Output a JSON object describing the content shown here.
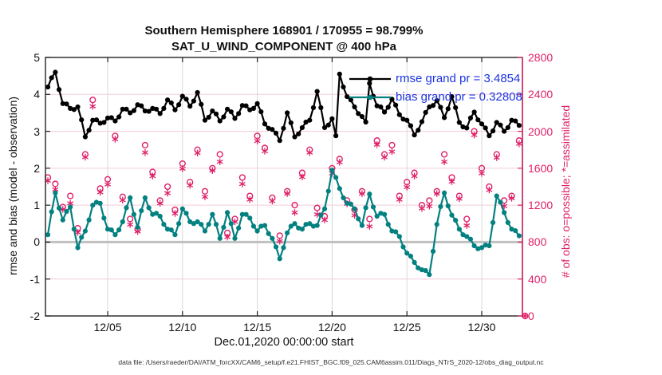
{
  "title": {
    "line1": "Southern Hemisphere 168901 / 170955 = 98.799%",
    "line2": "SAT_U_WIND_COMPONENT @ 400 hPa"
  },
  "legend": {
    "text_color": "#1b34e2",
    "items": [
      {
        "label": "rmse grand pr = 3.4854",
        "series": "rmse"
      },
      {
        "label": "bias grand pr = 0.32808",
        "series": "bias"
      }
    ]
  },
  "axes": {
    "ylabel_left": "rmse and bias (model - observation)",
    "ylabel_right": "# of obs: o=possible; *=assimilated",
    "xlabel": "Dec.01,2020 00:00:00 start"
  },
  "footer": {
    "text": "data file: /Users/raeder/DAI/ATM_forcXX/CAM6_setup/f.e21.FHIST_BGC.f09_025.CAM6assim.011/Diags_NTrS_2020-12/obs_diag_output.nc"
  },
  "colors": {
    "rmse": "#000000",
    "bias": "#038080",
    "obs": "#de2168",
    "grid_h": "#f5ccdb",
    "grid_v": "#d9d9d9",
    "zero_line": "#c0c0c0",
    "spine": "#222222"
  },
  "chart_data": {
    "type": "line",
    "title": "Southern Hemisphere 168901 / 170955 = 98.799% — SAT_U_WIND_COMPONENT @ 400 hPa",
    "xlabel": "Dec.01,2020 00:00:00 start",
    "ylabel_left": "rmse and bias (model - observation)",
    "ylabel_right": "# of obs: o=possible; *=assimilated",
    "xlim": [
      -0.16,
      31.72
    ],
    "ylim_left": [
      -2,
      5
    ],
    "ylim_right": [
      0,
      2800
    ],
    "grid": true,
    "legend_position": "top-right",
    "xticks": [
      {
        "t": 4,
        "label": "12/05"
      },
      {
        "t": 9,
        "label": "12/10"
      },
      {
        "t": 14,
        "label": "12/15"
      },
      {
        "t": 19,
        "label": "12/20"
      },
      {
        "t": 24,
        "label": "12/25"
      },
      {
        "t": 29,
        "label": "12/30"
      }
    ],
    "yticks_left": [
      -2,
      -1,
      0,
      1,
      2,
      3,
      4,
      5
    ],
    "yticks_right": [
      0,
      400,
      800,
      1200,
      1600,
      2000,
      2400,
      2800
    ],
    "series": [
      {
        "name": "rmse",
        "grand_value": 3.4854,
        "axis": "left",
        "t_start": 0,
        "t_step": 0.25,
        "values": [
          4.2,
          4.45,
          4.6,
          4.13,
          3.75,
          3.74,
          3.62,
          3.59,
          3.66,
          3.31,
          2.85,
          3.03,
          3.3,
          3.31,
          3.22,
          3.24,
          3.36,
          3.37,
          3.28,
          3.39,
          3.6,
          3.6,
          3.5,
          3.56,
          3.72,
          3.69,
          3.55,
          3.54,
          3.62,
          3.6,
          3.48,
          3.62,
          3.85,
          3.77,
          3.58,
          3.72,
          3.95,
          3.87,
          3.68,
          3.82,
          4.05,
          3.73,
          3.3,
          3.38,
          3.55,
          3.47,
          3.28,
          3.39,
          3.6,
          3.53,
          3.35,
          3.48,
          3.7,
          3.69,
          3.58,
          3.62,
          3.75,
          3.53,
          3.2,
          3.08,
          3.05,
          2.95,
          2.75,
          3.08,
          3.5,
          3.23,
          2.85,
          2.93,
          3.1,
          3.25,
          3.3,
          3.64,
          4.08,
          3.64,
          3.1,
          3.17,
          3.34,
          2.88,
          4.55,
          4.2,
          3.94,
          3.85,
          3.66,
          3.48,
          3.4,
          3.25,
          4.3,
          3.95,
          3.69,
          3.66,
          3.52,
          3.65,
          3.87,
          3.71,
          3.45,
          3.33,
          3.3,
          3.15,
          2.9,
          3.03,
          3.26,
          3.51,
          3.66,
          3.7,
          3.83,
          3.65,
          3.37,
          3.61,
          3.94,
          3.64,
          3.24,
          3.12,
          3.09,
          3.36,
          3.52,
          3.31,
          3.2,
          3.09,
          2.88,
          3.01,
          3.24,
          3.17,
          3.0,
          3.1,
          3.3,
          3.28,
          3.16
        ]
      },
      {
        "name": "bias",
        "grand_value": 0.32808,
        "axis": "left",
        "t_start": 0,
        "t_step": 0.25,
        "values": [
          0.2,
          0.82,
          1.33,
          0.92,
          0.6,
          0.83,
          0.95,
          0.35,
          -0.15,
          0.13,
          0.3,
          0.6,
          1.0,
          1.08,
          1.05,
          0.65,
          0.35,
          0.33,
          0.2,
          0.33,
          0.55,
          0.93,
          1.2,
          0.75,
          0.4,
          0.85,
          1.2,
          0.93,
          0.75,
          0.78,
          0.7,
          0.48,
          0.35,
          0.33,
          0.2,
          0.5,
          0.9,
          0.78,
          0.55,
          0.5,
          0.55,
          0.48,
          0.3,
          0.48,
          0.75,
          0.48,
          0.1,
          0.4,
          0.8,
          0.5,
          0.1,
          0.38,
          0.75,
          0.75,
          0.65,
          0.43,
          0.3,
          0.43,
          0.45,
          0.23,
          0.1,
          -0.13,
          -0.45,
          -0.15,
          0.25,
          0.43,
          0.5,
          0.38,
          0.35,
          0.48,
          0.5,
          0.43,
          0.45,
          0.73,
          0.9,
          1.38,
          1.95,
          1.75,
          1.45,
          1.2,
          1.05,
          1.03,
          0.9,
          0.63,
          0.45,
          0.93,
          1.3,
          0.95,
          0.7,
          0.78,
          0.75,
          0.48,
          0.3,
          0.28,
          0.15,
          -0.13,
          -0.3,
          -0.38,
          -0.55,
          -0.7,
          -0.75,
          -0.77,
          -0.88,
          -0.25,
          0.48,
          0.96,
          1.33,
          0.98,
          0.73,
          0.59,
          0.35,
          0.2,
          0.15,
          0.08,
          -0.1,
          -0.18,
          -0.15,
          -0.08,
          -0.1,
          0.53,
          1.25,
          1.08,
          0.8,
          0.53,
          0.35,
          0.31,
          0.17
        ]
      }
    ],
    "scatter": [
      {
        "name": "possible",
        "marker": "circle",
        "axis": "right",
        "t_start": 0,
        "t_step": 0.5,
        "values": [
          1500,
          1430,
          1180,
          1300,
          950,
          1750,
          2340,
          1380,
          1480,
          1950,
          1290,
          1050,
          940,
          1850,
          1560,
          1250,
          1400,
          1150,
          1650,
          1450,
          1800,
          1350,
          1600,
          1750,
          900,
          1050,
          1500,
          1300,
          1950,
          1820,
          1280,
          870,
          1350,
          1200,
          1550,
          1800,
          1170,
          1080,
          1600,
          1700,
          1250,
          1150,
          1350,
          1050,
          1900,
          1750,
          1850,
          1300,
          1450,
          1550,
          1200,
          1250,
          1350,
          1750,
          1500,
          1300,
          1050,
          2000,
          1600,
          1400,
          1750,
          1250,
          1300,
          1900
        ]
      },
      {
        "name": "assimilated",
        "marker": "asterisk",
        "axis": "right",
        "t_start": 0,
        "t_step": 0.5,
        "values": [
          1465,
          1370,
          1155,
          1220,
          905,
          1720,
          2270,
          1340,
          1425,
          1915,
          1255,
          990,
          915,
          1770,
          1515,
          1220,
          1330,
          1110,
          1595,
          1415,
          1765,
          1290,
          1575,
          1670,
          855,
          1020,
          1430,
          1260,
          1895,
          1785,
          1245,
          810,
          1325,
          1120,
          1505,
          1770,
          1100,
          1040,
          1545,
          1665,
          1215,
          1090,
          1325,
          970,
          1855,
          1720,
          1780,
          1260,
          1395,
          1515,
          1165,
          1190,
          1325,
          1670,
          1455,
          1270,
          980,
          1960,
          1545,
          1365,
          1715,
          1190,
          1275,
          1865
        ]
      }
    ],
    "final_point": {
      "t": 31.9,
      "possible": 0,
      "assimilated": 0
    }
  }
}
